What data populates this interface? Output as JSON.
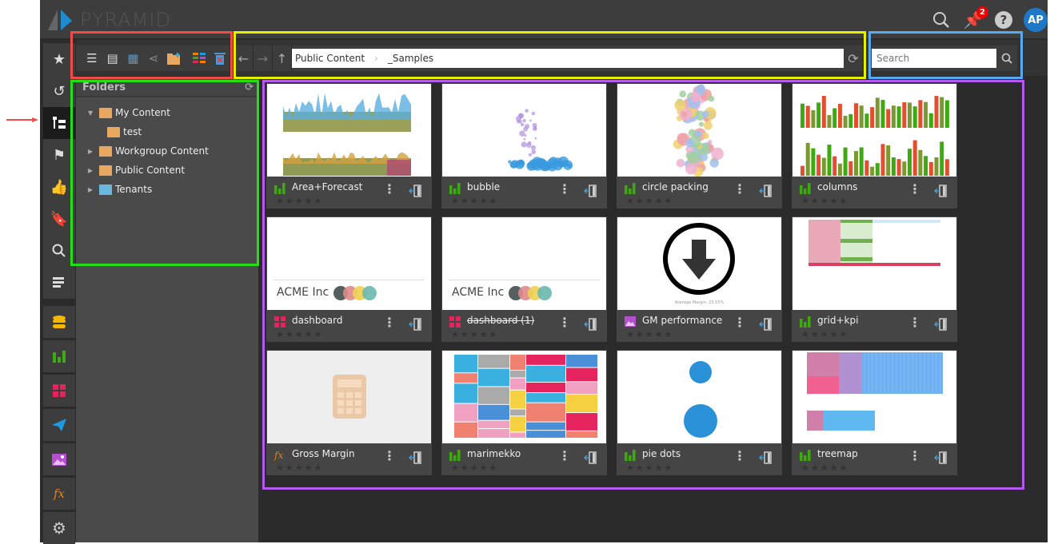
{
  "app": {
    "title": "PYRAMID"
  },
  "topbar": {
    "notifications_count": "2",
    "avatar_initials": "AP",
    "icons": [
      "search-icon",
      "pin-icon",
      "help-icon"
    ]
  },
  "sidebar": {
    "items": [
      {
        "name": "favorites",
        "icon": "star-icon"
      },
      {
        "name": "recent",
        "icon": "history-icon"
      },
      {
        "name": "content",
        "icon": "tree-icon",
        "active": true
      },
      {
        "name": "flags",
        "icon": "flag-icon"
      },
      {
        "name": "recommended",
        "icon": "thumbs-up-icon"
      },
      {
        "name": "bookmarks",
        "icon": "bookmark-icon"
      },
      {
        "name": "search",
        "icon": "search-icon"
      },
      {
        "name": "data-sources",
        "icon": "server-icon"
      },
      {
        "name": "model",
        "icon": "database-icon",
        "color": "#f5b800"
      },
      {
        "name": "discover",
        "icon": "bar-chart-icon",
        "color": "#3daa0f"
      },
      {
        "name": "present",
        "icon": "dashboard-icon",
        "color": "#e5245e"
      },
      {
        "name": "publish",
        "icon": "send-icon",
        "color": "#1e9ae0"
      },
      {
        "name": "illustrate",
        "icon": "image-icon",
        "color": "#b450d0"
      },
      {
        "name": "formulate",
        "icon": "fx-icon",
        "color": "#f08000"
      },
      {
        "name": "settings",
        "icon": "gear-icon"
      }
    ]
  },
  "toolbar": {
    "view_icons": [
      "list-icon",
      "details-icon",
      "grid-icon",
      "share-icon",
      "new-folder-icon",
      "color-tags-icon",
      "delete-icon"
    ],
    "breadcrumb": [
      "Public Content",
      "_Samples"
    ],
    "search_placeholder": "Search"
  },
  "folders": {
    "title": "Folders",
    "items": [
      {
        "label": "My Content",
        "expanded": true
      },
      {
        "label": "test"
      },
      {
        "label": "Workgroup Content"
      },
      {
        "label": "Public Content"
      },
      {
        "label": "Tenants"
      }
    ]
  },
  "cards": [
    {
      "name": "Area+Forecast",
      "type": "discover",
      "rating": 0
    },
    {
      "name": "bubble",
      "type": "discover",
      "rating": 0
    },
    {
      "name": "circle packing",
      "type": "discover",
      "rating": 0
    },
    {
      "name": "columns",
      "type": "discover",
      "rating": 0
    },
    {
      "name": "dashboard",
      "type": "present",
      "rating": 0,
      "thumb_text": "ACME Inc"
    },
    {
      "name": "dashboard (1)",
      "type": "present",
      "rating": 0,
      "thumb_text": "ACME Inc",
      "strikethrough": true
    },
    {
      "name": "GM performance",
      "type": "illustrate",
      "rating": 0,
      "thumb_text": "Average Margin: 23.55%"
    },
    {
      "name": "grid+kpi",
      "type": "discover",
      "rating": 0
    },
    {
      "name": "Gross Margin",
      "type": "formulate",
      "rating": 0
    },
    {
      "name": "marimekko",
      "type": "discover",
      "rating": 0
    },
    {
      "name": "pie dots",
      "type": "discover",
      "rating": 0
    },
    {
      "name": "treemap",
      "type": "discover",
      "rating": 0
    }
  ],
  "colors": {
    "discover": "#3daa0f",
    "present": "#e5245e",
    "illustrate": "#b450d0",
    "formulate": "#f08000",
    "highlight_red": "#f04a4a",
    "highlight_yellow": "#e5f000",
    "highlight_blue": "#5aa8f0",
    "highlight_green": "#22e014",
    "highlight_purple": "#b45af0"
  }
}
